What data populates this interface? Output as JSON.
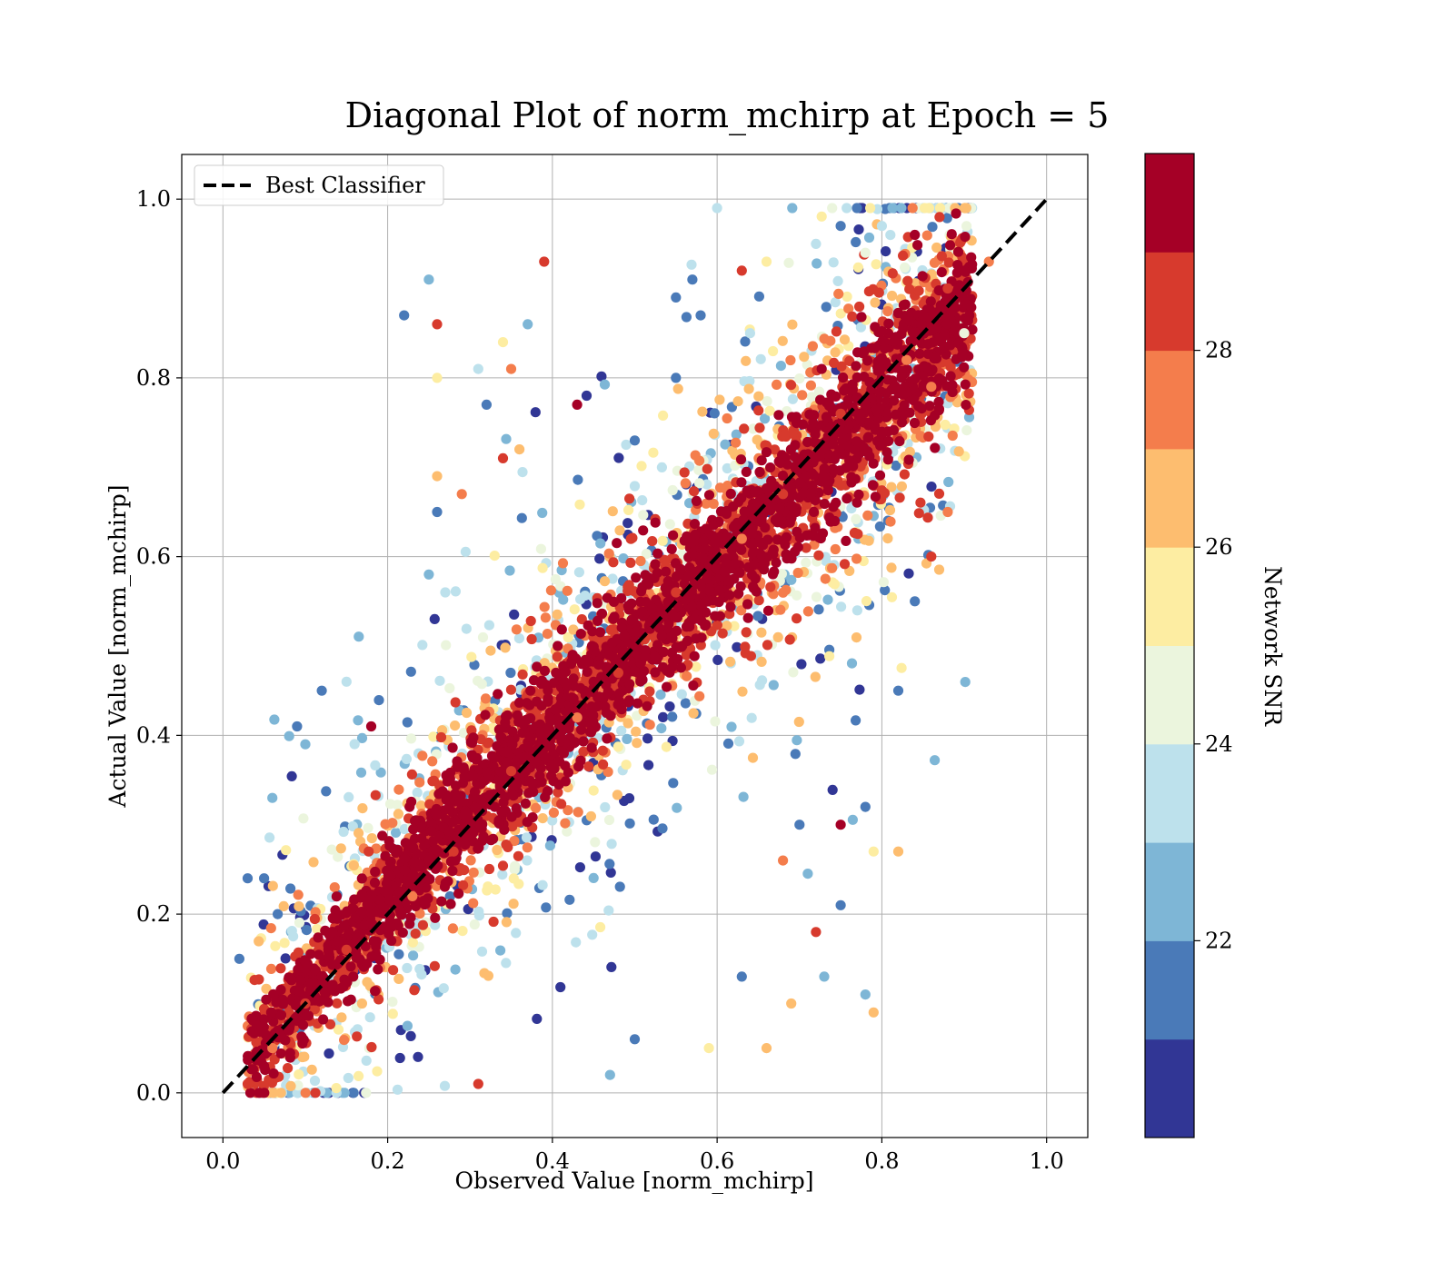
{
  "chart_data": {
    "type": "scatter",
    "title": "Diagonal Plot of norm_mchirp at Epoch = 5",
    "xlabel": "Observed Value [norm_mchirp]",
    "ylabel": "Actual Value [norm_mchirp]",
    "xlim": [
      -0.05,
      1.05
    ],
    "ylim": [
      -0.05,
      1.05
    ],
    "x_ticks": [
      "0.0",
      "0.2",
      "0.4",
      "0.6",
      "0.8",
      "1.0"
    ],
    "y_ticks": [
      "0.0",
      "0.2",
      "0.4",
      "0.6",
      "0.8",
      "1.0"
    ],
    "grid": true,
    "legend": {
      "placement": "upper-left",
      "entries": [
        "Best Classifier"
      ]
    },
    "reference_line": {
      "name": "Best Classifier",
      "x": [
        0.0,
        1.0
      ],
      "y": [
        0.0,
        1.0
      ],
      "style": "dashed",
      "color": "#000000"
    },
    "colorbar": {
      "label": "Network SNR",
      "range": [
        20.0,
        30.0
      ],
      "ticks": [
        "22",
        "24",
        "26",
        "28"
      ],
      "colors": [
        "#313695",
        "#4a7ab8",
        "#7eb6d6",
        "#bde1ec",
        "#ebf5dd",
        "#fdeda2",
        "#fdbd6f",
        "#f47d4c",
        "#d73a2d",
        "#a50026"
      ]
    },
    "series": [
      {
        "description_points": "representative sample of scatter points (observed x, actual y, snr)",
        "points": [
          [
            0.03,
            0.01,
            28
          ],
          [
            0.05,
            0.03,
            29
          ],
          [
            0.06,
            0.05,
            27
          ],
          [
            0.08,
            0.07,
            29
          ],
          [
            0.1,
            0.1,
            28
          ],
          [
            0.12,
            0.13,
            29
          ],
          [
            0.15,
            0.16,
            28
          ],
          [
            0.18,
            0.19,
            29
          ],
          [
            0.2,
            0.2,
            29
          ],
          [
            0.23,
            0.22,
            27
          ],
          [
            0.25,
            0.26,
            29
          ],
          [
            0.28,
            0.27,
            28
          ],
          [
            0.3,
            0.3,
            29
          ],
          [
            0.33,
            0.32,
            29
          ],
          [
            0.35,
            0.36,
            28
          ],
          [
            0.38,
            0.37,
            29
          ],
          [
            0.4,
            0.4,
            29
          ],
          [
            0.43,
            0.42,
            27
          ],
          [
            0.45,
            0.46,
            29
          ],
          [
            0.48,
            0.47,
            28
          ],
          [
            0.5,
            0.5,
            29
          ],
          [
            0.53,
            0.52,
            29
          ],
          [
            0.55,
            0.56,
            28
          ],
          [
            0.58,
            0.57,
            29
          ],
          [
            0.6,
            0.6,
            29
          ],
          [
            0.63,
            0.62,
            27
          ],
          [
            0.65,
            0.66,
            29
          ],
          [
            0.68,
            0.67,
            28
          ],
          [
            0.7,
            0.7,
            29
          ],
          [
            0.73,
            0.72,
            29
          ],
          [
            0.75,
            0.76,
            28
          ],
          [
            0.78,
            0.77,
            29
          ],
          [
            0.8,
            0.8,
            29
          ],
          [
            0.83,
            0.82,
            27
          ],
          [
            0.85,
            0.87,
            29
          ],
          [
            0.88,
            0.9,
            28
          ],
          [
            0.9,
            0.92,
            29
          ],
          [
            0.84,
            0.96,
            29
          ],
          [
            0.87,
            0.98,
            28
          ],
          [
            0.6,
            0.99,
            23
          ],
          [
            0.25,
            0.91,
            22
          ],
          [
            0.22,
            0.87,
            21
          ],
          [
            0.26,
            0.86,
            28
          ],
          [
            0.39,
            0.93,
            28
          ],
          [
            0.37,
            0.86,
            22
          ],
          [
            0.34,
            0.84,
            25
          ],
          [
            0.31,
            0.81,
            23
          ],
          [
            0.35,
            0.81,
            27
          ],
          [
            0.26,
            0.8,
            25
          ],
          [
            0.32,
            0.77,
            21
          ],
          [
            0.43,
            0.77,
            29
          ],
          [
            0.36,
            0.72,
            26
          ],
          [
            0.34,
            0.71,
            28
          ],
          [
            0.26,
            0.69,
            26
          ],
          [
            0.29,
            0.67,
            27
          ],
          [
            0.26,
            0.65,
            21
          ],
          [
            0.25,
            0.58,
            22
          ],
          [
            0.27,
            0.56,
            23
          ],
          [
            0.12,
            0.45,
            21
          ],
          [
            0.15,
            0.46,
            23
          ],
          [
            0.09,
            0.41,
            21
          ],
          [
            0.1,
            0.39,
            22
          ],
          [
            0.18,
            0.41,
            29
          ],
          [
            0.06,
            0.33,
            22
          ],
          [
            0.03,
            0.24,
            21
          ],
          [
            0.05,
            0.24,
            21
          ],
          [
            0.02,
            0.15,
            21
          ],
          [
            0.84,
            0.55,
            21
          ],
          [
            0.82,
            0.45,
            21
          ],
          [
            0.88,
            0.65,
            27
          ],
          [
            0.82,
            0.27,
            26
          ],
          [
            0.79,
            0.27,
            25
          ],
          [
            0.78,
            0.32,
            21
          ],
          [
            0.78,
            0.11,
            22
          ],
          [
            0.79,
            0.09,
            26
          ],
          [
            0.75,
            0.21,
            21
          ],
          [
            0.73,
            0.13,
            22
          ],
          [
            0.66,
            0.05,
            26
          ],
          [
            0.59,
            0.05,
            25
          ],
          [
            0.47,
            0.02,
            22
          ],
          [
            0.5,
            0.06,
            21
          ],
          [
            0.31,
            0.01,
            28
          ],
          [
            0.63,
            0.13,
            21
          ],
          [
            0.69,
            0.1,
            26
          ],
          [
            0.72,
            0.18,
            28
          ],
          [
            0.7,
            0.3,
            21
          ],
          [
            0.68,
            0.26,
            27
          ],
          [
            0.75,
            0.3,
            29
          ],
          [
            0.86,
            0.79,
            27
          ],
          [
            0.86,
            0.6,
            28
          ],
          [
            0.72,
            0.95,
            23
          ],
          [
            0.75,
            0.97,
            21
          ],
          [
            0.8,
            0.97,
            23
          ],
          [
            0.78,
            0.94,
            24
          ],
          [
            0.93,
            0.93,
            27
          ],
          [
            0.9,
            0.85,
            24
          ],
          [
            0.55,
            0.89,
            21
          ],
          [
            0.57,
            0.91,
            21
          ],
          [
            0.63,
            0.92,
            28
          ],
          [
            0.55,
            0.8,
            21
          ],
          [
            0.58,
            0.87,
            21
          ],
          [
            0.64,
            0.85,
            23
          ],
          [
            0.66,
            0.93,
            25
          ],
          [
            0.5,
            0.73,
            21
          ]
        ]
      }
    ]
  }
}
